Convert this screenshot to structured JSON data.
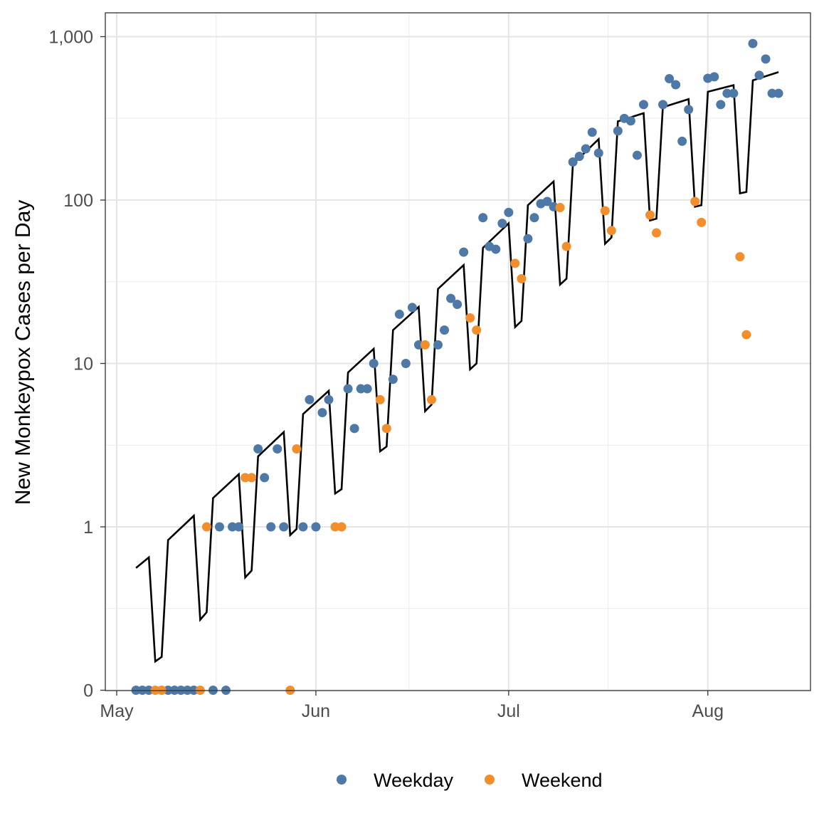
{
  "chart_data": {
    "type": "scatter",
    "title": "",
    "xlabel": "",
    "ylabel": "New Monkeypox Cases per Day",
    "y_scale": "log (0 shown at bottom)",
    "y_ticks": [
      0,
      1,
      10,
      100,
      1000
    ],
    "y_tick_labels": [
      "0",
      "1",
      "10",
      "100",
      "1,000"
    ],
    "x_ticks": [
      "May 1",
      "Jun 1",
      "Jul 1",
      "Aug 1"
    ],
    "x_tick_labels": [
      "May",
      "Jun",
      "Jul",
      "Aug"
    ],
    "grid": true,
    "legend_position": "bottom",
    "colors": {
      "Weekday": "#4e79a7",
      "Weekend": "#f28e2b",
      "line": "#000000"
    },
    "series": [
      {
        "name": "Weekday",
        "kind": "points",
        "x": [
          "May 4",
          "May 5",
          "May 6",
          "May 9",
          "May 10",
          "May 11",
          "May 12",
          "May 13",
          "May 16",
          "May 17",
          "May 18",
          "May 19",
          "May 20",
          "May 23",
          "May 24",
          "May 25",
          "May 26",
          "May 27",
          "May 30",
          "May 31",
          "Jun 1",
          "Jun 2",
          "Jun 3",
          "Jun 6",
          "Jun 7",
          "Jun 8",
          "Jun 9",
          "Jun 10",
          "Jun 13",
          "Jun 14",
          "Jun 15",
          "Jun 16",
          "Jun 17",
          "Jun 20",
          "Jun 21",
          "Jun 22",
          "Jun 23",
          "Jun 24",
          "Jun 27",
          "Jun 28",
          "Jun 29",
          "Jun 30",
          "Jul 1",
          "Jul 4",
          "Jul 5",
          "Jul 6",
          "Jul 7",
          "Jul 8",
          "Jul 11",
          "Jul 12",
          "Jul 13",
          "Jul 14",
          "Jul 15",
          "Jul 18",
          "Jul 19",
          "Jul 20",
          "Jul 21",
          "Jul 22",
          "Jul 25",
          "Jul 26",
          "Jul 27",
          "Jul 28",
          "Jul 29",
          "Aug 1",
          "Aug 2",
          "Aug 3",
          "Aug 4",
          "Aug 5",
          "Aug 8",
          "Aug 9",
          "Aug 10",
          "Aug 11",
          "Aug 12"
        ],
        "y": [
          0,
          0,
          0,
          0,
          0,
          0,
          0,
          0,
          0,
          1,
          0,
          1,
          1,
          3,
          2,
          1,
          3,
          1,
          1,
          6,
          1,
          5,
          6,
          7,
          4,
          7,
          7,
          10,
          8,
          20,
          10,
          22,
          13,
          13,
          16,
          25,
          23,
          48,
          78,
          52,
          50,
          72,
          84,
          58,
          78,
          95,
          98,
          91,
          171,
          185,
          206,
          260,
          194,
          265,
          316,
          305,
          188,
          384,
          384,
          553,
          508,
          229,
          358,
          556,
          568,
          384,
          450,
          450,
          908,
          580,
          730,
          450,
          450
        ]
      },
      {
        "name": "Weekend",
        "kind": "points",
        "x": [
          "May 7",
          "May 8",
          "May 14",
          "May 15",
          "May 21",
          "May 22",
          "May 28",
          "May 29",
          "Jun 4",
          "Jun 5",
          "Jun 11",
          "Jun 12",
          "Jun 18",
          "Jun 19",
          "Jun 25",
          "Jun 26",
          "Jul 2",
          "Jul 3",
          "Jul 9",
          "Jul 10",
          "Jul 16",
          "Jul 17",
          "Jul 23",
          "Jul 24",
          "Jul 30",
          "Jul 31",
          "Aug 6",
          "Aug 7"
        ],
        "y": [
          0,
          0,
          0,
          1,
          2,
          2,
          0,
          3,
          1,
          1,
          6,
          4,
          13,
          6,
          19,
          16,
          41,
          33,
          90,
          52,
          86,
          65,
          81,
          63,
          98,
          73,
          45,
          15
        ]
      },
      {
        "kind": "line",
        "x": [
          "May 4",
          "May 6",
          "May 7",
          "May 8",
          "May 9",
          "May 13",
          "May 14",
          "May 15",
          "May 16",
          "May 20",
          "May 21",
          "May 22",
          "May 23",
          "May 27",
          "May 28",
          "May 29",
          "May 30",
          "Jun 3",
          "Jun 4",
          "Jun 5",
          "Jun 6",
          "Jun 10",
          "Jun 11",
          "Jun 12",
          "Jun 13",
          "Jun 17",
          "Jun 18",
          "Jun 19",
          "Jun 20",
          "Jun 24",
          "Jun 25",
          "Jun 26",
          "Jun 27",
          "Jul 1",
          "Jul 2",
          "Jul 3",
          "Jul 4",
          "Jul 8",
          "Jul 9",
          "Jul 10",
          "Jul 11",
          "Jul 15",
          "Jul 16",
          "Jul 17",
          "Jul 18",
          "Jul 22",
          "Jul 23",
          "Jul 24",
          "Jul 25",
          "Jul 29",
          "Jul 30",
          "Jul 31",
          "Aug 1",
          "Aug 5",
          "Aug 6",
          "Aug 7",
          "Aug 8",
          "Aug 12"
        ],
        "y": [
          0.56,
          0.65,
          0.15,
          0.16,
          0.83,
          1.17,
          0.27,
          0.3,
          1.5,
          2.1,
          0.49,
          0.54,
          2.7,
          3.8,
          0.89,
          0.97,
          4.9,
          6.8,
          1.6,
          1.7,
          8.8,
          12.3,
          2.9,
          3.1,
          16,
          22.2,
          5.1,
          5.6,
          28.6,
          40,
          9.2,
          10,
          51,
          72,
          16.7,
          18.2,
          93,
          130,
          30.4,
          33,
          166,
          236,
          54,
          59,
          303,
          340,
          75,
          77,
          370,
          415,
          91,
          93,
          460,
          505,
          110,
          112,
          540,
          607
        ]
      }
    ]
  }
}
